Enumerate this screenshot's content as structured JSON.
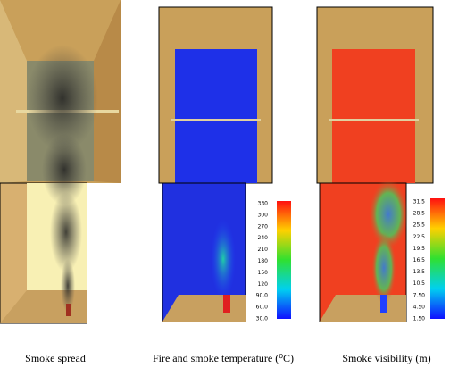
{
  "panels": [
    {
      "caption": "Smoke spread"
    },
    {
      "caption": "Fire and smoke temperature (⁰C)",
      "colorbar": {
        "ticks": [
          330,
          300,
          270,
          240,
          210,
          180,
          150,
          120,
          {
            "value": 90,
            "label": "90.0"
          },
          {
            "value": 60,
            "label": "60.0"
          },
          {
            "value": 30,
            "label": "30.0"
          }
        ]
      }
    },
    {
      "caption": "Smoke visibility (m)",
      "colorbar": {
        "ticks": [
          31.5,
          28.5,
          25.5,
          22.5,
          19.5,
          16.5,
          13.5,
          10.5,
          {
            "value": 7.5,
            "label": "7.50"
          },
          {
            "value": 4.5,
            "label": "4.50"
          },
          {
            "value": 1.5,
            "label": "1.50"
          }
        ]
      }
    }
  ]
}
